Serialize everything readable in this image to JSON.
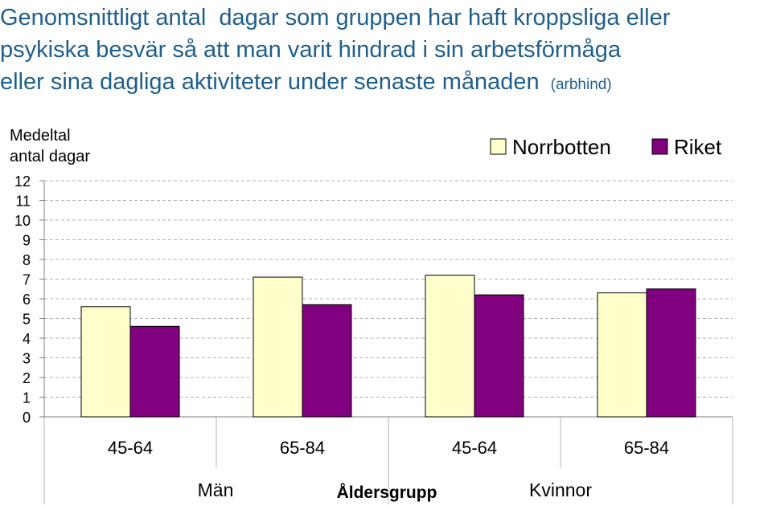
{
  "title": {
    "lines": [
      "Genomsnittligt antal  dagar som gruppen har haft kroppsliga eller",
      "psykiska besvär så att man varit hindrad i sin arbetsförmåga",
      "eller sina dagliga aktiviteter under senaste månaden"
    ],
    "suffix": "(arbhind)"
  },
  "colors": {
    "title": "#1F5F8C",
    "norrbotten": "#FFFFCC",
    "riket": "#800080",
    "grid": "#B0B0B0"
  },
  "chart_data": {
    "type": "bar",
    "ylabel": [
      "Medeltal",
      "antal dagar"
    ],
    "xlabel": "Åldersgrupp",
    "ylim": [
      0,
      12
    ],
    "yticks": [
      "0",
      "1",
      "2",
      "3",
      "4",
      "5",
      "6",
      "7",
      "8",
      "9",
      "10",
      "11",
      "12"
    ],
    "categories": [
      "45-64",
      "65-84",
      "45-64",
      "65-84"
    ],
    "groups": [
      {
        "label": "Män",
        "categories": [
          0,
          1
        ]
      },
      {
        "label": "Kvinnor",
        "categories": [
          2,
          3
        ]
      }
    ],
    "series": [
      {
        "name": "Norrbotten",
        "color": "#FFFFCC",
        "values": [
          5.6,
          7.1,
          7.2,
          6.3
        ]
      },
      {
        "name": "Riket",
        "color": "#800080",
        "values": [
          4.6,
          5.7,
          6.2,
          6.5
        ]
      }
    ],
    "legend": "top-right",
    "grid": true
  }
}
